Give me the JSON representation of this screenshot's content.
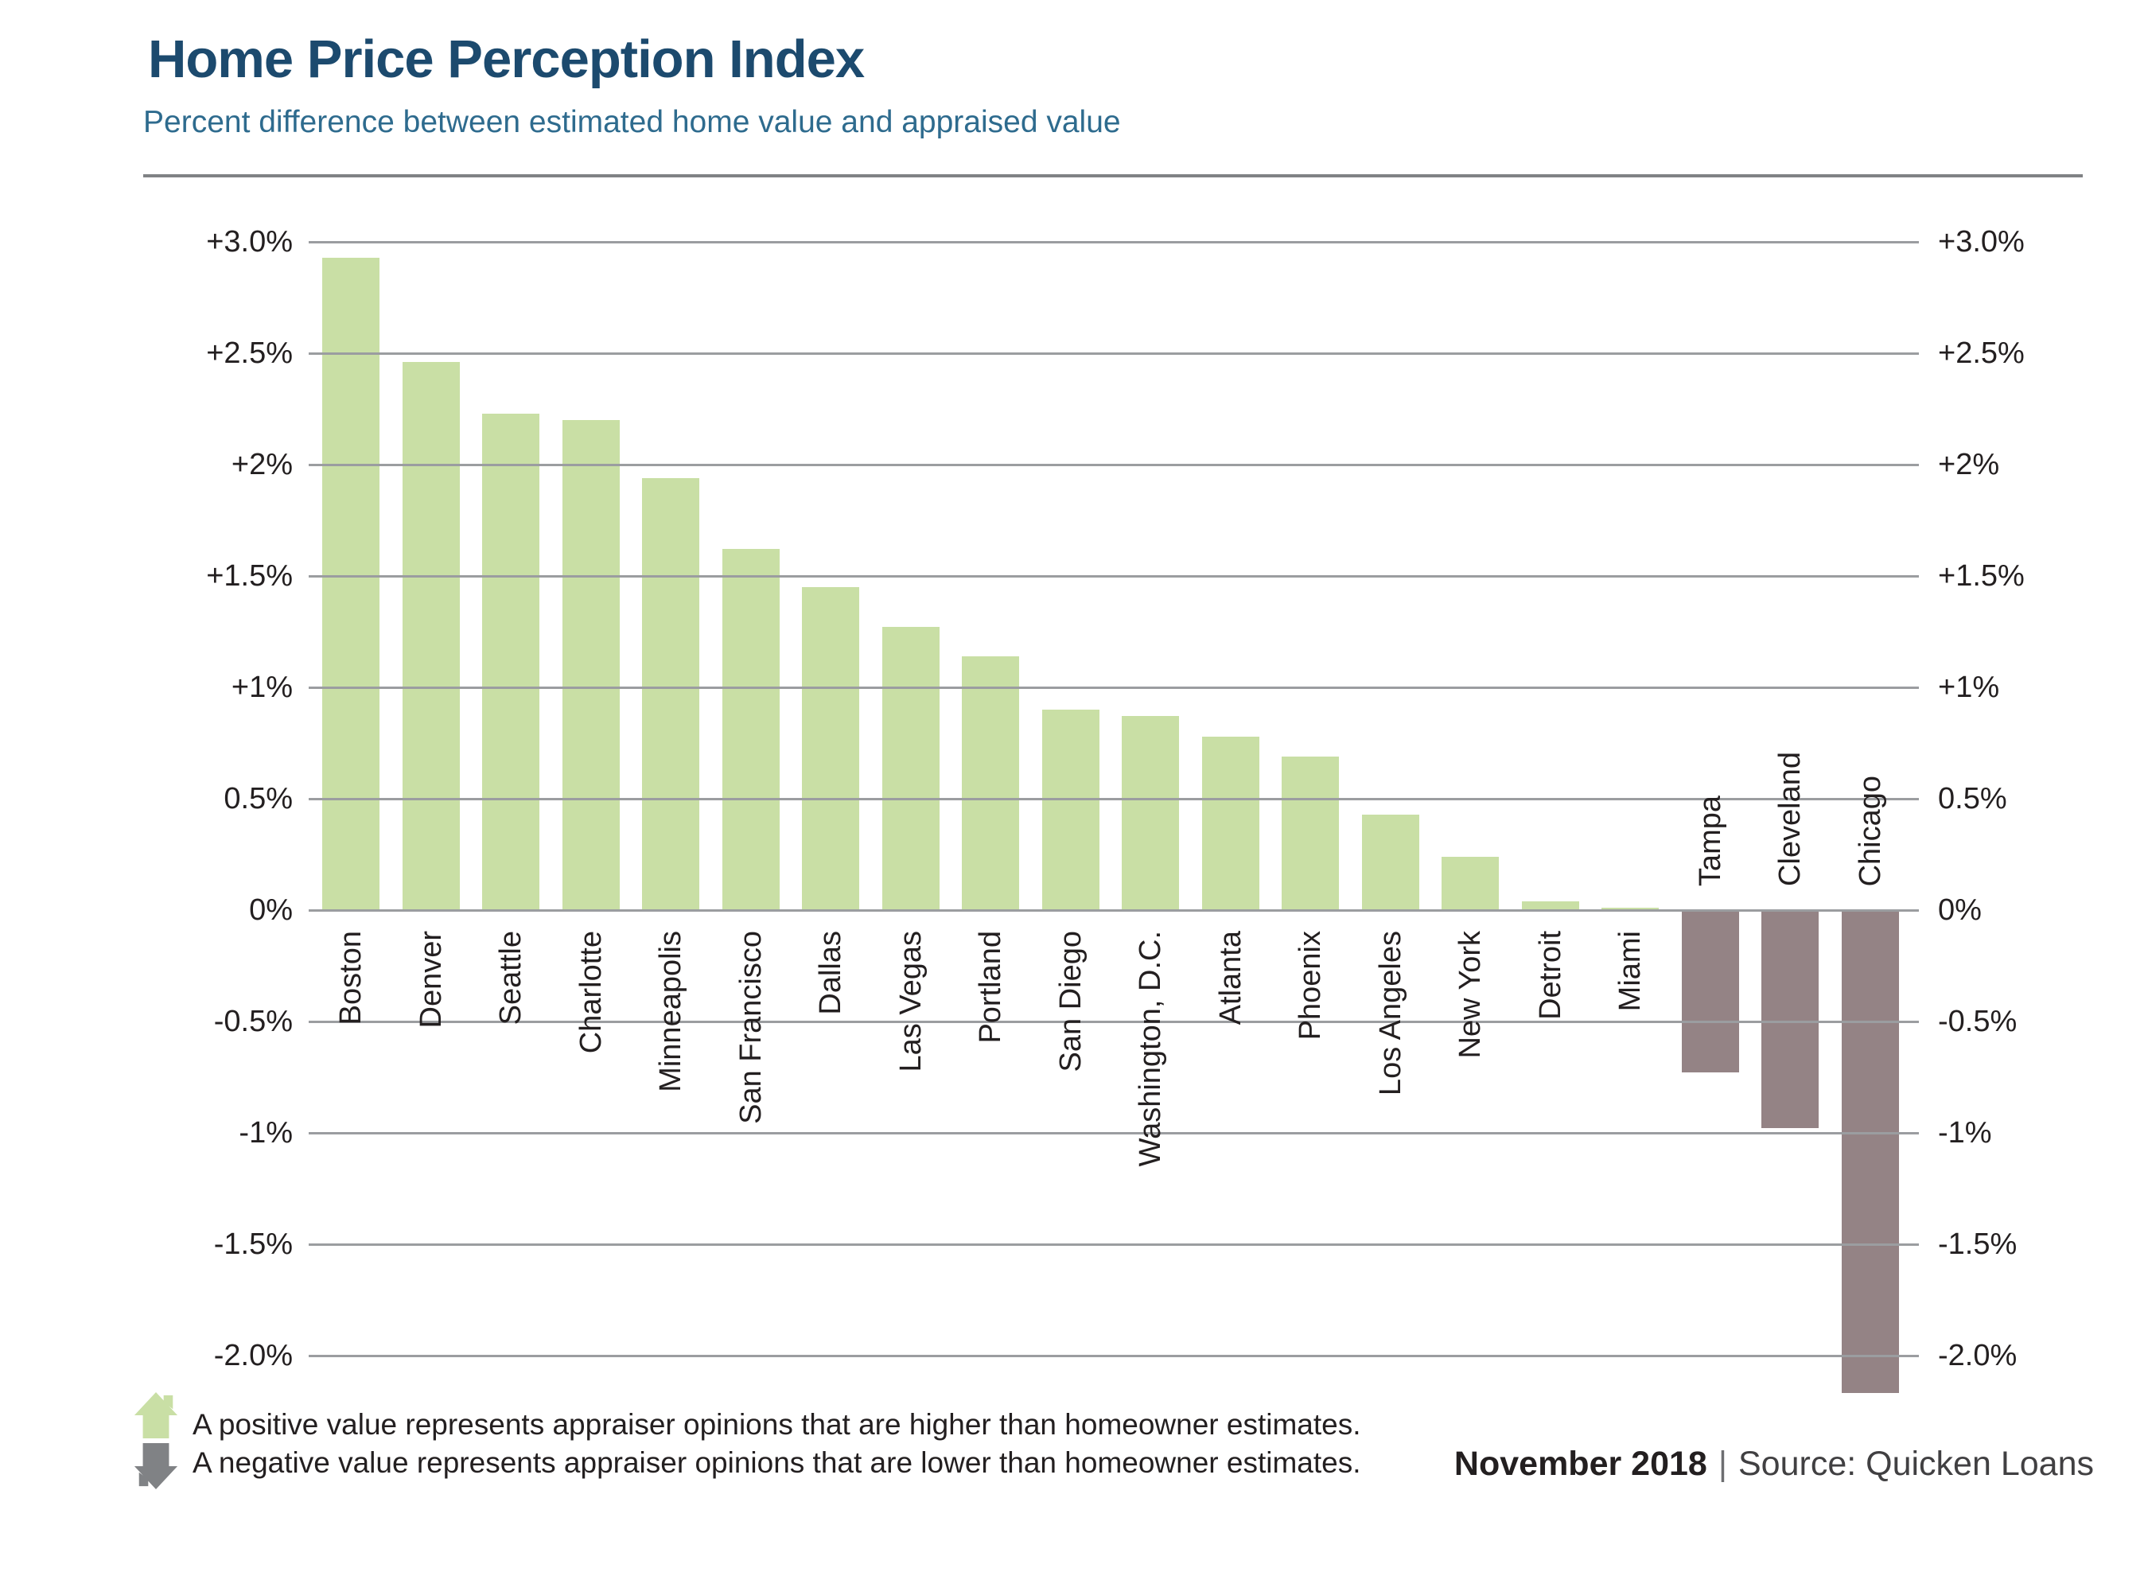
{
  "header": {
    "title": "Home Price Perception Index",
    "subtitle": "Percent difference between estimated home value and appraised value"
  },
  "chart_data": {
    "type": "bar",
    "categories": [
      "Boston",
      "Denver",
      "Seattle",
      "Charlotte",
      "Minneapolis",
      "San Francisco",
      "Dallas",
      "Las Vegas",
      "Portland",
      "San Diego",
      "Washington, D.C.",
      "Atlanta",
      "Phoenix",
      "Los Angeles",
      "New York",
      "Detroit",
      "Miami",
      "Tampa",
      "Cleveland",
      "Chicago"
    ],
    "values": [
      2.93,
      2.46,
      2.23,
      2.2,
      1.94,
      1.62,
      1.45,
      1.27,
      1.14,
      0.9,
      0.87,
      0.78,
      0.69,
      0.43,
      0.24,
      0.04,
      0.0,
      -0.72,
      -0.97,
      -2.16
    ],
    "title": "Home Price Perception Index",
    "xlabel": "",
    "ylabel": "Percent difference between estimated home value and appraised value",
    "ylim": [
      -2.25,
      3.0
    ],
    "grid": true,
    "tick_labels_both_sides": true,
    "yticks": {
      "values": [
        3.0,
        2.5,
        2.0,
        1.5,
        1.0,
        0.5,
        0.0,
        -0.5,
        -1.0,
        -1.5,
        -2.0
      ],
      "labels": [
        "+3.0%",
        "+2.5%",
        "+2%",
        "+1.5%",
        "+1%",
        "0.5%",
        "0%",
        "-0.5%",
        "-1%",
        "-1.5%",
        "-2.0%"
      ]
    }
  },
  "colors": {
    "positive": "#c9dfa5",
    "negative": "#948385",
    "legend_negative_arrow": "#808285",
    "gridline": "#9b9da0",
    "title": "#1c4a6e",
    "subtitle": "#2e6b8e",
    "text": "#231f20"
  },
  "legend": {
    "positive_icon": "house-up-arrow",
    "negative_icon": "house-down-arrow",
    "positive_text": "A positive value represents appraiser opinions that are higher than homeowner estimates.",
    "negative_text": "A negative value represents appraiser opinions that are lower than homeowner estimates."
  },
  "footer": {
    "date": "November 2018",
    "separator": "|",
    "source": "Source: Quicken Loans"
  }
}
